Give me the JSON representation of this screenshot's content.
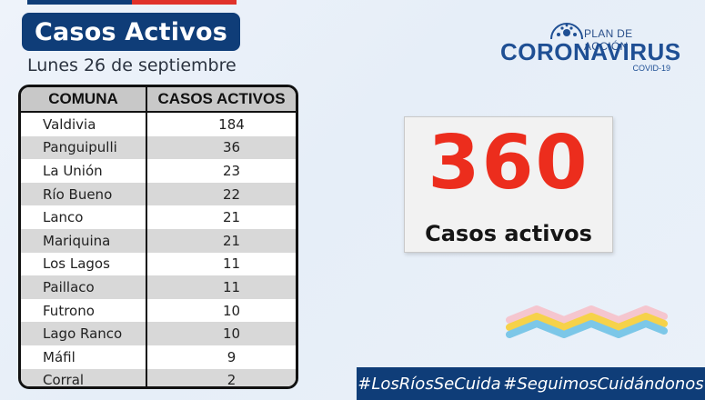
{
  "header": {
    "title": "Casos Activos",
    "date": "Lunes 26 de septiembre"
  },
  "logo": {
    "subtitle": "PLAN DE ACCIÓN",
    "main": "CORONAVIRUS",
    "covid": "COVID-19"
  },
  "table": {
    "columns": [
      "COMUNA",
      "CASOS ACTIVOS"
    ],
    "rows": [
      {
        "comuna": "Valdivia",
        "casos": "184"
      },
      {
        "comuna": "Panguipulli",
        "casos": "36"
      },
      {
        "comuna": "La Unión",
        "casos": "23"
      },
      {
        "comuna": "Río Bueno",
        "casos": "22"
      },
      {
        "comuna": "Lanco",
        "casos": "21"
      },
      {
        "comuna": "Mariquina",
        "casos": "21"
      },
      {
        "comuna": "Los Lagos",
        "casos": "11"
      },
      {
        "comuna": "Paillaco",
        "casos": "11"
      },
      {
        "comuna": "Futrono",
        "casos": "10"
      },
      {
        "comuna": "Lago Ranco",
        "casos": "10"
      },
      {
        "comuna": "Máfil",
        "casos": "9"
      },
      {
        "comuna": "Corral",
        "casos": "2"
      }
    ]
  },
  "total": {
    "number": "360",
    "label": "Casos activos"
  },
  "footer": {
    "hashtag1": "#LosRíosSeCuida",
    "hashtag2": "#SeguimosCuidándonos"
  },
  "colors": {
    "brand_blue": "#0f3d78",
    "accent_red": "#ec2d1d"
  }
}
